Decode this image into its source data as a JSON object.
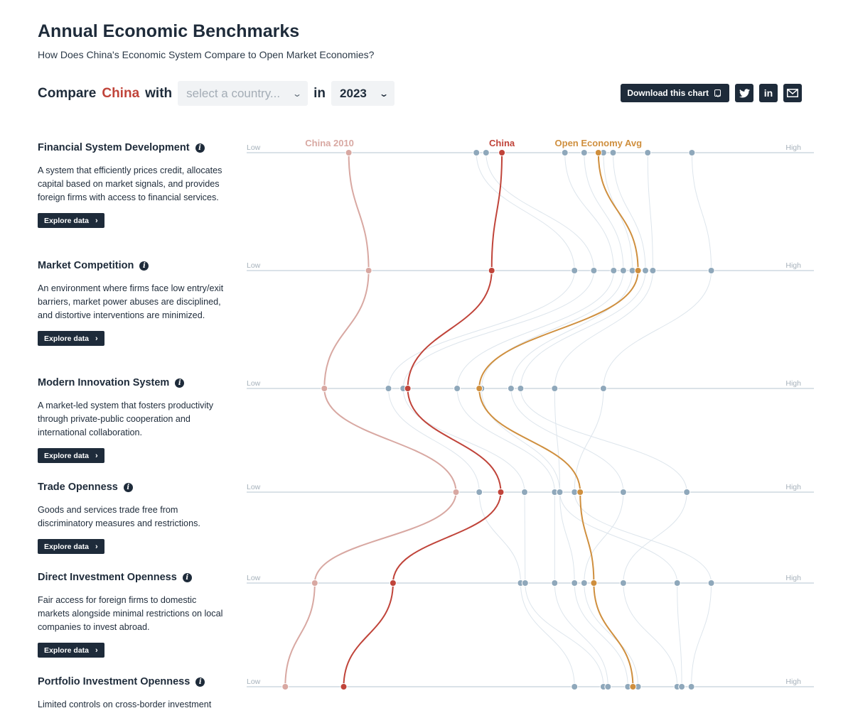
{
  "header": {
    "title": "Annual Economic Benchmarks",
    "subtitle": "How Does China's Economic System Compare to Open Market Economies?"
  },
  "controls": {
    "compare_prefix": "Compare",
    "highlight_country": "China",
    "with_text": "with",
    "country_placeholder": "select a country...",
    "in_text": "in",
    "year_value": "2023"
  },
  "toolbar": {
    "download_label": "Download this chart",
    "twitter_icon": "twitter-icon",
    "linkedin_icon": "linkedin-icon",
    "email_icon": "email-icon"
  },
  "colors": {
    "china": "#c0443a",
    "china_2010": "#d8a8a2",
    "open_avg": "#cf8f3e",
    "other": "#8fa8bb",
    "axis": "#b6c4d0",
    "text_dark": "#1e2b3a"
  },
  "explore_label": "Explore data",
  "categories": [
    {
      "title": "Financial System Development",
      "description": "A system that efficiently prices credit, allocates capital based on market signals, and provides foreign firms with access to financial services."
    },
    {
      "title": "Market Competition",
      "description": "An environment where firms face low entry/exit barriers, market power abuses are disciplined, and distortive interventions are minimized."
    },
    {
      "title": "Modern Innovation System",
      "description": "A market-led system that fosters productivity through private-public cooperation and international collaboration."
    },
    {
      "title": "Trade Openness",
      "description": "Goods and services trade free from discriminatory measures and restrictions."
    },
    {
      "title": "Direct Investment Openness",
      "description": "Fair access for foreign firms to domestic markets alongside minimal restrictions on local companies to invest abroad."
    },
    {
      "title": "Portfolio Investment Openness",
      "description": "Limited controls on cross-border investment"
    }
  ],
  "chart_data": {
    "type": "line",
    "axis_low_label": "Low",
    "axis_high_label": "High",
    "x_range": [
      0,
      1
    ],
    "categories": [
      "Financial System Development",
      "Market Competition",
      "Modern Innovation System",
      "Trade Openness",
      "Direct Investment Openness",
      "Portfolio Investment Openness"
    ],
    "series": [
      {
        "name": "China 2010",
        "role": "china2010",
        "values": [
          0.18,
          0.215,
          0.137,
          0.369,
          0.12,
          0.068
        ]
      },
      {
        "name": "China",
        "role": "china",
        "values": [
          0.45,
          0.432,
          0.284,
          0.448,
          0.258,
          0.171
        ]
      },
      {
        "name": "Open Economy Avg",
        "role": "avg",
        "values": [
          0.62,
          0.69,
          0.41,
          0.588,
          0.612,
          0.681
        ]
      },
      {
        "role": "other",
        "values": [
          0.405,
          0.578,
          0.25,
          0.41,
          0.483,
          0.578
        ]
      },
      {
        "role": "other",
        "values": [
          0.422,
          0.612,
          0.276,
          0.49,
          0.491,
          0.629
        ]
      },
      {
        "role": "other",
        "values": [
          0.561,
          0.647,
          0.371,
          0.543,
          0.543,
          0.637
        ]
      },
      {
        "role": "other",
        "values": [
          0.595,
          0.664,
          0.414,
          0.552,
          0.578,
          0.672
        ]
      },
      {
        "role": "other",
        "values": [
          0.629,
          0.68,
          0.466,
          0.664,
          0.595,
          0.69
        ]
      },
      {
        "role": "other",
        "values": [
          0.646,
          0.703,
          0.483,
          0.776,
          0.664,
          0.759
        ]
      },
      {
        "role": "other",
        "values": [
          0.707,
          0.716,
          0.543,
          0.552,
          0.759,
          0.767
        ]
      },
      {
        "role": "other",
        "values": [
          0.785,
          0.819,
          0.629,
          0.578,
          0.819,
          0.784
        ]
      }
    ]
  }
}
